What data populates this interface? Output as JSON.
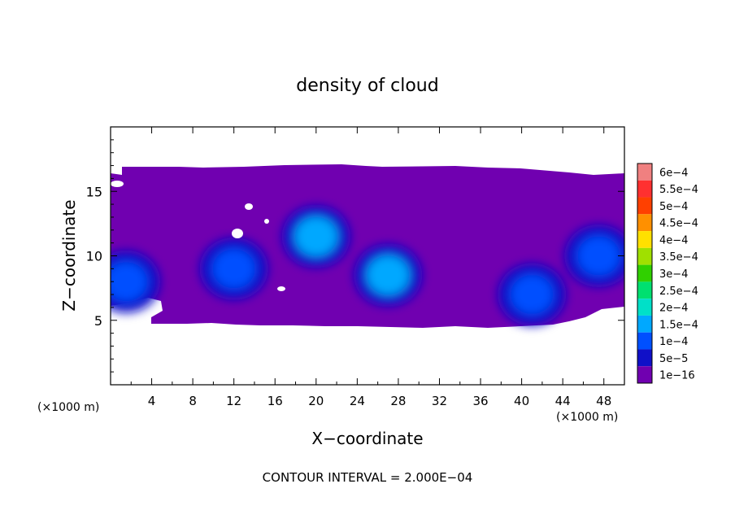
{
  "chart_data": {
    "type": "heatmap",
    "title": "density of cloud",
    "xlabel": "X−coordinate",
    "ylabel": "Z−coordinate",
    "x_unit_left": "(×1000 m)",
    "x_unit_right": "(×1000 m)",
    "footer": "CONTOUR INTERVAL = 2.000E−04",
    "xlim": [
      0,
      50
    ],
    "ylim": [
      0,
      20
    ],
    "x_ticks": [
      4,
      8,
      12,
      16,
      20,
      24,
      28,
      32,
      36,
      40,
      44,
      48
    ],
    "y_ticks": [
      5,
      10,
      15
    ],
    "colorbar": {
      "levels": [
        {
          "label": "6e−4",
          "color": "#f08080"
        },
        {
          "label": "5.5e−4",
          "color": "#ff3030"
        },
        {
          "label": "5e−4",
          "color": "#ff4000"
        },
        {
          "label": "4.5e−4",
          "color": "#ff9000"
        },
        {
          "label": "4e−4",
          "color": "#ffe000"
        },
        {
          "label": "3.5e−4",
          "color": "#a0e000"
        },
        {
          "label": "3e−4",
          "color": "#30d000"
        },
        {
          "label": "2.5e−4",
          "color": "#00e070"
        },
        {
          "label": "2e−4",
          "color": "#00e0c8"
        },
        {
          "label": "1.5e−4",
          "color": "#00a8ff"
        },
        {
          "label": "1e−4",
          "color": "#0050ff"
        },
        {
          "label": "5e−5",
          "color": "#1010c8"
        },
        {
          "label": "1e−16",
          "color": "#7000b0"
        }
      ]
    },
    "cloud_region": {
      "x_range": [
        0,
        50
      ],
      "z_range": [
        4.8,
        16.8
      ]
    },
    "features": [
      {
        "x": 20,
        "z": 11.5,
        "level": "1.5e−4"
      },
      {
        "x": 27,
        "z": 8.5,
        "level": "1.5e−4"
      },
      {
        "x": 41,
        "z": 7,
        "level": "1e−4"
      },
      {
        "x": 47.5,
        "z": 10,
        "level": "1e−4"
      },
      {
        "x": 1.5,
        "z": 8,
        "level": "1e−4"
      },
      {
        "x": 12,
        "z": 9,
        "level": "1e−4"
      }
    ]
  }
}
